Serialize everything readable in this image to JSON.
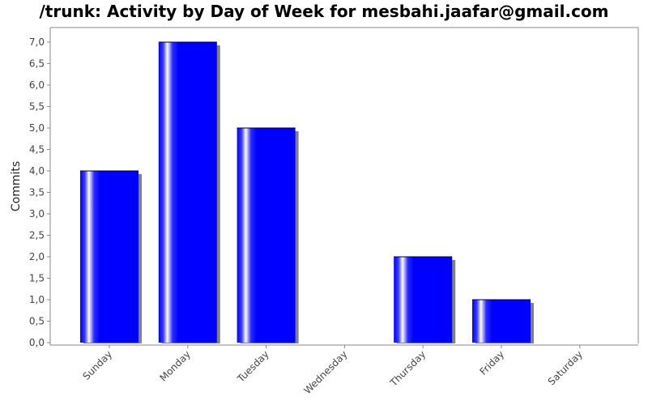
{
  "chart_data": {
    "type": "bar",
    "title": "/trunk: Activity by Day of Week for mesbahi.jaafar@gmail.com",
    "xlabel": "",
    "ylabel": "Commits",
    "categories": [
      "Sunday",
      "Monday",
      "Tuesday",
      "Wednesday",
      "Thursday",
      "Friday",
      "Saturday"
    ],
    "values": [
      4,
      7,
      5,
      0,
      2,
      1,
      0
    ],
    "ylim": [
      0,
      7.3
    ],
    "yticks": [
      0,
      0.5,
      1,
      1.5,
      2,
      2.5,
      3,
      3.5,
      4,
      4.5,
      5,
      5.5,
      6,
      6.5,
      7
    ],
    "ytick_labels": [
      "0,0",
      "0,5",
      "1,0",
      "1,5",
      "2,0",
      "2,5",
      "3,0",
      "3,5",
      "4,0",
      "4,5",
      "5,0",
      "5,5",
      "6,0",
      "6,5",
      "7,0"
    ],
    "grid": false,
    "bar_color": "#0000ff",
    "shadow_color": "#808080",
    "axis_color": "#888888"
  }
}
